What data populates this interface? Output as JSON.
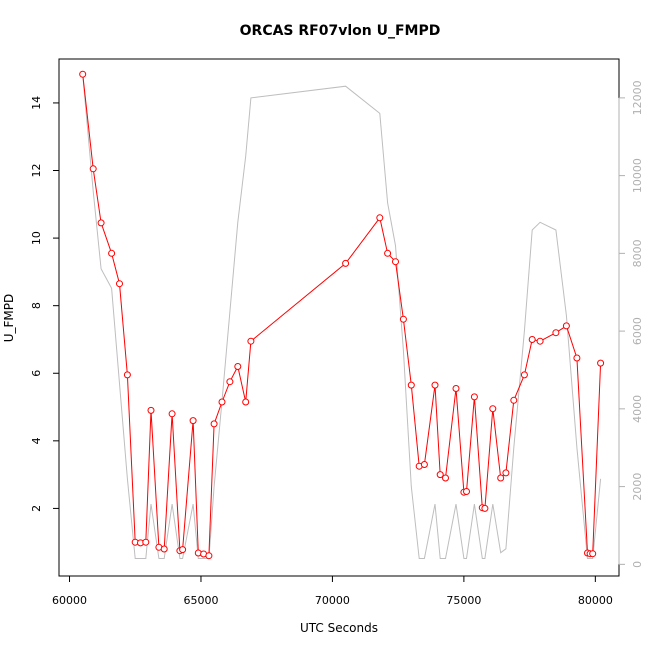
{
  "chart_data": {
    "type": "line",
    "title": "ORCAS RF07vlon U_FMPD",
    "xlabel": "UTC Seconds",
    "ylabel": "U_FMPD",
    "xlim": [
      59600,
      80900
    ],
    "ylim": [
      0,
      15.3
    ],
    "y2lim": [
      -300,
      13000
    ],
    "xticks": [
      60000,
      65000,
      70000,
      75000,
      80000
    ],
    "yticks": [
      2,
      4,
      6,
      8,
      10,
      12,
      14
    ],
    "y2ticks": [
      0,
      2000,
      4000,
      6000,
      8000,
      10000,
      12000
    ],
    "grid": false,
    "legend": "none",
    "colors": {
      "primary": "#ff0000",
      "secondary": "#bebebe"
    },
    "series": [
      {
        "axis": "left",
        "marker": "open-circle",
        "x": [
          60500,
          60900,
          61200,
          61600,
          61900,
          62200,
          62500,
          62700,
          62900,
          63100,
          63400,
          63600,
          63900,
          64200,
          64300,
          64700,
          64900,
          65100,
          65300,
          65500,
          65800,
          66100,
          66400,
          66700,
          66900,
          70500,
          71800,
          72100,
          72400,
          72700,
          73000,
          73300,
          73500,
          73900,
          74100,
          74300,
          74700,
          75000,
          75100,
          75400,
          75700,
          75800,
          76100,
          76400,
          76600,
          76900,
          77300,
          77600,
          77900,
          78500,
          78900,
          79300,
          79700,
          79800,
          79900,
          80200
        ],
        "y": [
          14.85,
          12.05,
          10.45,
          9.55,
          8.65,
          5.95,
          1.0,
          0.98,
          1.0,
          4.9,
          0.85,
          0.8,
          4.8,
          0.75,
          0.78,
          4.6,
          0.68,
          0.65,
          0.6,
          4.5,
          5.15,
          5.75,
          6.2,
          5.15,
          6.95,
          9.25,
          10.6,
          9.55,
          9.3,
          7.6,
          5.65,
          3.25,
          3.3,
          5.65,
          3.0,
          2.9,
          5.55,
          2.48,
          2.5,
          5.3,
          2.02,
          2.0,
          4.95,
          2.9,
          3.05,
          5.2,
          5.95,
          7.0,
          6.95,
          7.2,
          7.4,
          6.45,
          0.68,
          0.66,
          0.66,
          6.3
        ]
      },
      {
        "axis": "right",
        "x": [
          60500,
          60900,
          61200,
          61600,
          62200,
          62500,
          62900,
          63100,
          63400,
          63600,
          63900,
          64200,
          64300,
          64700,
          64900,
          65100,
          65300,
          65500,
          65800,
          66100,
          66400,
          66700,
          66900,
          70500,
          71800,
          72100,
          72400,
          72700,
          73000,
          73300,
          73500,
          73900,
          74100,
          74300,
          74700,
          75000,
          75100,
          75400,
          75700,
          75800,
          76100,
          76400,
          76600,
          76900,
          77300,
          77600,
          77900,
          78500,
          78900,
          79300,
          79700,
          79800,
          79900,
          80200
        ],
        "y": [
          12600,
          9600,
          7600,
          7100,
          2200,
          150,
          150,
          1550,
          150,
          150,
          1550,
          150,
          150,
          1550,
          150,
          150,
          150,
          2000,
          4200,
          6500,
          8800,
          10500,
          12000,
          12300,
          11600,
          9300,
          8200,
          5500,
          2000,
          150,
          150,
          1550,
          150,
          150,
          1550,
          150,
          150,
          1550,
          150,
          150,
          1550,
          300,
          400,
          3000,
          6000,
          8600,
          8800,
          8600,
          6400,
          3000,
          150,
          150,
          150,
          2200
        ]
      }
    ]
  }
}
